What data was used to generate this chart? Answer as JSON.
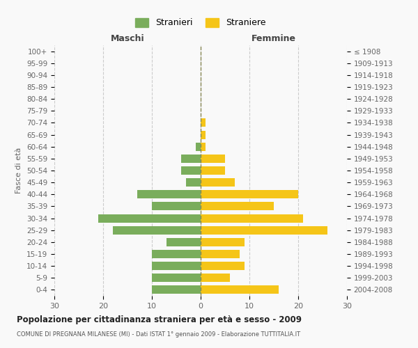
{
  "age_groups": [
    "100+",
    "95-99",
    "90-94",
    "85-89",
    "80-84",
    "75-79",
    "70-74",
    "65-69",
    "60-64",
    "55-59",
    "50-54",
    "45-49",
    "40-44",
    "35-39",
    "30-34",
    "25-29",
    "20-24",
    "15-19",
    "10-14",
    "5-9",
    "0-4"
  ],
  "birth_years": [
    "≤ 1908",
    "1909-1913",
    "1914-1918",
    "1919-1923",
    "1924-1928",
    "1929-1933",
    "1934-1938",
    "1939-1943",
    "1944-1948",
    "1949-1953",
    "1954-1958",
    "1959-1963",
    "1964-1968",
    "1969-1973",
    "1974-1978",
    "1979-1983",
    "1984-1988",
    "1989-1993",
    "1994-1998",
    "1999-2003",
    "2004-2008"
  ],
  "maschi": [
    0,
    0,
    0,
    0,
    0,
    0,
    0,
    0,
    1,
    4,
    4,
    3,
    13,
    10,
    21,
    18,
    7,
    10,
    10,
    10,
    10
  ],
  "femmine": [
    0,
    0,
    0,
    0,
    0,
    0,
    1,
    1,
    1,
    5,
    5,
    7,
    20,
    15,
    21,
    26,
    9,
    8,
    9,
    6,
    16
  ],
  "maschi_color": "#7aad5c",
  "femmine_color": "#f5c518",
  "background_color": "#f9f9f9",
  "grid_color": "#cccccc",
  "title": "Popolazione per cittadinanza straniera per età e sesso - 2009",
  "subtitle": "COMUNE DI PREGNANA MILANESE (MI) - Dati ISTAT 1° gennaio 2009 - Elaborazione TUTTITALIA.IT",
  "left_label": "Maschi",
  "right_label": "Femmine",
  "y_left_label": "Fasce di età",
  "legend_maschi": "Stranieri",
  "legend_femmine": "Straniere",
  "xlim": 30,
  "bar_height": 0.7
}
